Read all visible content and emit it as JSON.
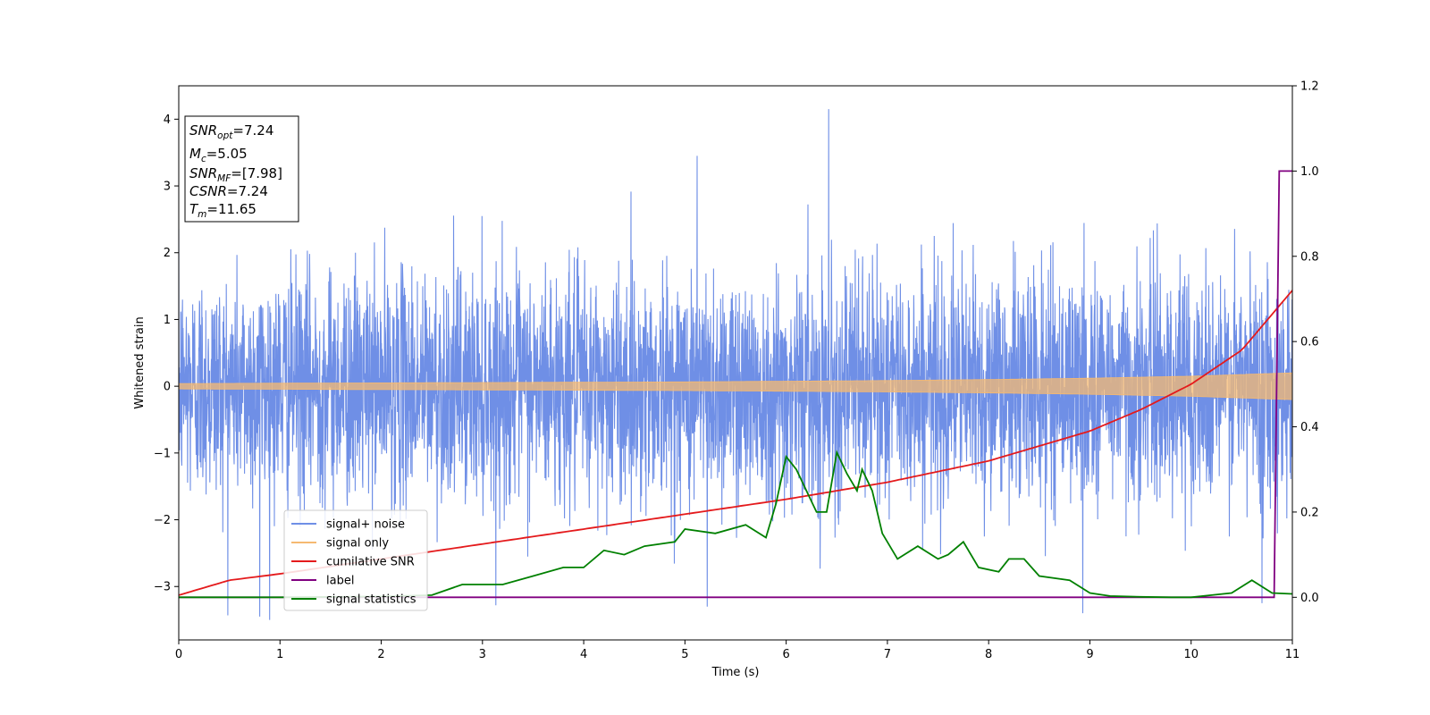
{
  "chart_data": {
    "type": "line",
    "title": "",
    "xlabel": "Time (s)",
    "ylabel": "Whitened strain",
    "xlim": [
      0,
      11
    ],
    "ylim": [
      -3.8,
      4.5
    ],
    "y2lim": [
      -0.1,
      1.2
    ],
    "grid": false,
    "legend_position": "lower-left",
    "x_ticks": [
      "0",
      "1",
      "2",
      "3",
      "4",
      "5",
      "6",
      "7",
      "8",
      "9",
      "10",
      "11"
    ],
    "y_ticks": [
      "−3",
      "−2",
      "−1",
      "0",
      "1",
      "2",
      "3",
      "4"
    ],
    "y2_ticks": [
      "0.0",
      "0.2",
      "0.4",
      "0.6",
      "0.8",
      "1.0",
      "1.2"
    ],
    "y_tick_values": [
      -3,
      -2,
      -1,
      0,
      1,
      2,
      3,
      4
    ],
    "y2_tick_values": [
      0,
      0.2,
      0.4,
      0.6,
      0.8,
      1.0,
      1.2
    ],
    "annotation": {
      "lines": [
        {
          "main": "SNR",
          "sub": "opt",
          "rest": "=7.24"
        },
        {
          "main": "M",
          "sub": "c",
          "rest": "=5.05"
        },
        {
          "main": "SNR",
          "sub": "MF",
          "rest": "=[7.98]"
        },
        {
          "main": "CSNR",
          "sub": "",
          "rest": "=7.24"
        },
        {
          "main": "T",
          "sub": "m",
          "rest": "=11.65"
        }
      ]
    },
    "series": [
      {
        "name": "signal+ noise",
        "color": "#6f8fe6",
        "axis": "left",
        "envelope_sigma": 0.85,
        "notable_peaks": [
          [
            6.42,
            4.15
          ],
          [
            5.12,
            3.45
          ],
          [
            0.8,
            -3.45
          ],
          [
            8.93,
            -3.4
          ],
          [
            5.22,
            -3.3
          ],
          [
            10.7,
            -3.25
          ]
        ]
      },
      {
        "name": "signal only",
        "color": "#f5b971",
        "axis": "left",
        "amplitude_x": [
          0,
          1,
          2,
          3,
          4,
          5,
          6,
          7,
          8,
          9,
          10,
          11
        ],
        "amplitude_y": [
          0.04,
          0.045,
          0.05,
          0.055,
          0.06,
          0.065,
          0.075,
          0.085,
          0.1,
          0.12,
          0.15,
          0.2
        ]
      },
      {
        "name": "cumilative SNR",
        "color": "#e41a1c",
        "axis": "right",
        "x": [
          0,
          0.5,
          1,
          2,
          3,
          4,
          5,
          6,
          7,
          8,
          9,
          9.5,
          10,
          10.5,
          11
        ],
        "y": [
          0.005,
          0.04,
          0.055,
          0.09,
          0.125,
          0.16,
          0.195,
          0.23,
          0.27,
          0.32,
          0.39,
          0.44,
          0.5,
          0.58,
          0.72
        ]
      },
      {
        "name": "label",
        "color": "#800080",
        "axis": "right",
        "x": [
          0,
          10.82,
          10.87,
          11
        ],
        "y": [
          0,
          0,
          1,
          1
        ]
      },
      {
        "name": "signal statistics",
        "color": "#008000",
        "axis": "right",
        "x": [
          0,
          1,
          2,
          2.5,
          2.8,
          3.2,
          3.5,
          3.8,
          4.0,
          4.2,
          4.4,
          4.6,
          4.9,
          5.0,
          5.3,
          5.6,
          5.8,
          5.9,
          6.0,
          6.1,
          6.3,
          6.4,
          6.5,
          6.6,
          6.7,
          6.75,
          6.85,
          6.95,
          7.1,
          7.3,
          7.5,
          7.6,
          7.75,
          7.9,
          8.1,
          8.2,
          8.35,
          8.5,
          8.8,
          9.0,
          9.2,
          9.5,
          9.8,
          10.0,
          10.2,
          10.4,
          10.6,
          10.8,
          11.0
        ],
        "y": [
          0,
          0,
          0.002,
          0.005,
          0.03,
          0.03,
          0.05,
          0.07,
          0.07,
          0.11,
          0.1,
          0.12,
          0.13,
          0.16,
          0.15,
          0.17,
          0.14,
          0.22,
          0.33,
          0.3,
          0.2,
          0.2,
          0.34,
          0.29,
          0.25,
          0.3,
          0.25,
          0.15,
          0.09,
          0.12,
          0.09,
          0.1,
          0.13,
          0.07,
          0.06,
          0.09,
          0.09,
          0.05,
          0.04,
          0.01,
          0.003,
          0.001,
          0.0,
          0.0,
          0.005,
          0.01,
          0.04,
          0.01,
          0.008
        ]
      }
    ]
  }
}
